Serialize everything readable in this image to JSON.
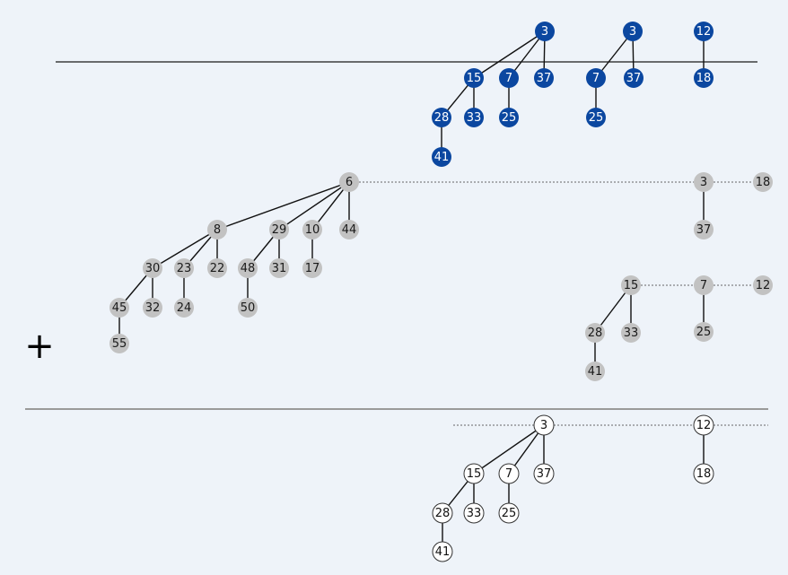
{
  "colors": {
    "background": "#eef3f9",
    "blue_node": "#0b47a0",
    "blue_node_text": "#ffffff",
    "gray_node": "#c2c2c2",
    "gray_node_text": "#1a1a1a",
    "white_node": "#ffffff",
    "white_node_stroke": "#333333",
    "edge": "#111111",
    "dotted": "#666666",
    "separator_line": "#1a1a1a",
    "divider_line": "#9a9a9a"
  },
  "operator": "+",
  "top_heap": {
    "trees": [
      {
        "root": "3",
        "children": [
          {
            "value": "15",
            "children": [
              {
                "value": "28",
                "children": [
                  {
                    "value": "41",
                    "children": []
                  }
                ]
              },
              {
                "value": "33",
                "children": []
              }
            ]
          },
          {
            "value": "7",
            "children": [
              {
                "value": "25",
                "children": []
              }
            ]
          },
          {
            "value": "37",
            "children": []
          }
        ]
      },
      {
        "root": "3",
        "children": [
          {
            "value": "7",
            "children": [
              {
                "value": "25",
                "children": []
              }
            ]
          },
          {
            "value": "37",
            "children": []
          }
        ]
      },
      {
        "root": "12",
        "children": [
          {
            "value": "18",
            "children": []
          }
        ]
      }
    ]
  },
  "gray_heap": {
    "root_list": [
      {
        "root": "6",
        "children": [
          {
            "value": "8",
            "children": [
              {
                "value": "30",
                "children": [
                  {
                    "value": "45",
                    "children": [
                      {
                        "value": "55",
                        "children": []
                      }
                    ]
                  },
                  {
                    "value": "32",
                    "children": []
                  }
                ]
              },
              {
                "value": "23",
                "children": [
                  {
                    "value": "24",
                    "children": []
                  }
                ]
              },
              {
                "value": "22",
                "children": []
              }
            ]
          },
          {
            "value": "29",
            "children": [
              {
                "value": "48",
                "children": [
                  {
                    "value": "50",
                    "children": []
                  }
                ]
              },
              {
                "value": "31",
                "children": []
              }
            ]
          },
          {
            "value": "10",
            "children": [
              {
                "value": "17",
                "children": []
              }
            ]
          },
          {
            "value": "44",
            "children": []
          }
        ]
      },
      {
        "root": "3",
        "children": [
          {
            "value": "37",
            "children": []
          }
        ]
      },
      {
        "root": "18",
        "children": []
      }
    ],
    "second_list": [
      {
        "root": "15",
        "children": [
          {
            "value": "28",
            "children": [
              {
                "value": "41",
                "children": []
              }
            ]
          },
          {
            "value": "33",
            "children": []
          }
        ]
      },
      {
        "root": "7",
        "children": [
          {
            "value": "25",
            "children": []
          }
        ]
      },
      {
        "root": "12",
        "children": []
      }
    ]
  },
  "result_heap": {
    "root_list": [
      {
        "root": "3",
        "children": [
          {
            "value": "15",
            "children": [
              {
                "value": "28",
                "children": [
                  {
                    "value": "41",
                    "children": []
                  }
                ]
              },
              {
                "value": "33",
                "children": []
              }
            ]
          },
          {
            "value": "7",
            "children": [
              {
                "value": "25",
                "children": []
              }
            ]
          },
          {
            "value": "37",
            "children": []
          }
        ]
      },
      {
        "root": "12",
        "children": [
          {
            "value": "18",
            "children": []
          }
        ]
      }
    ]
  }
}
